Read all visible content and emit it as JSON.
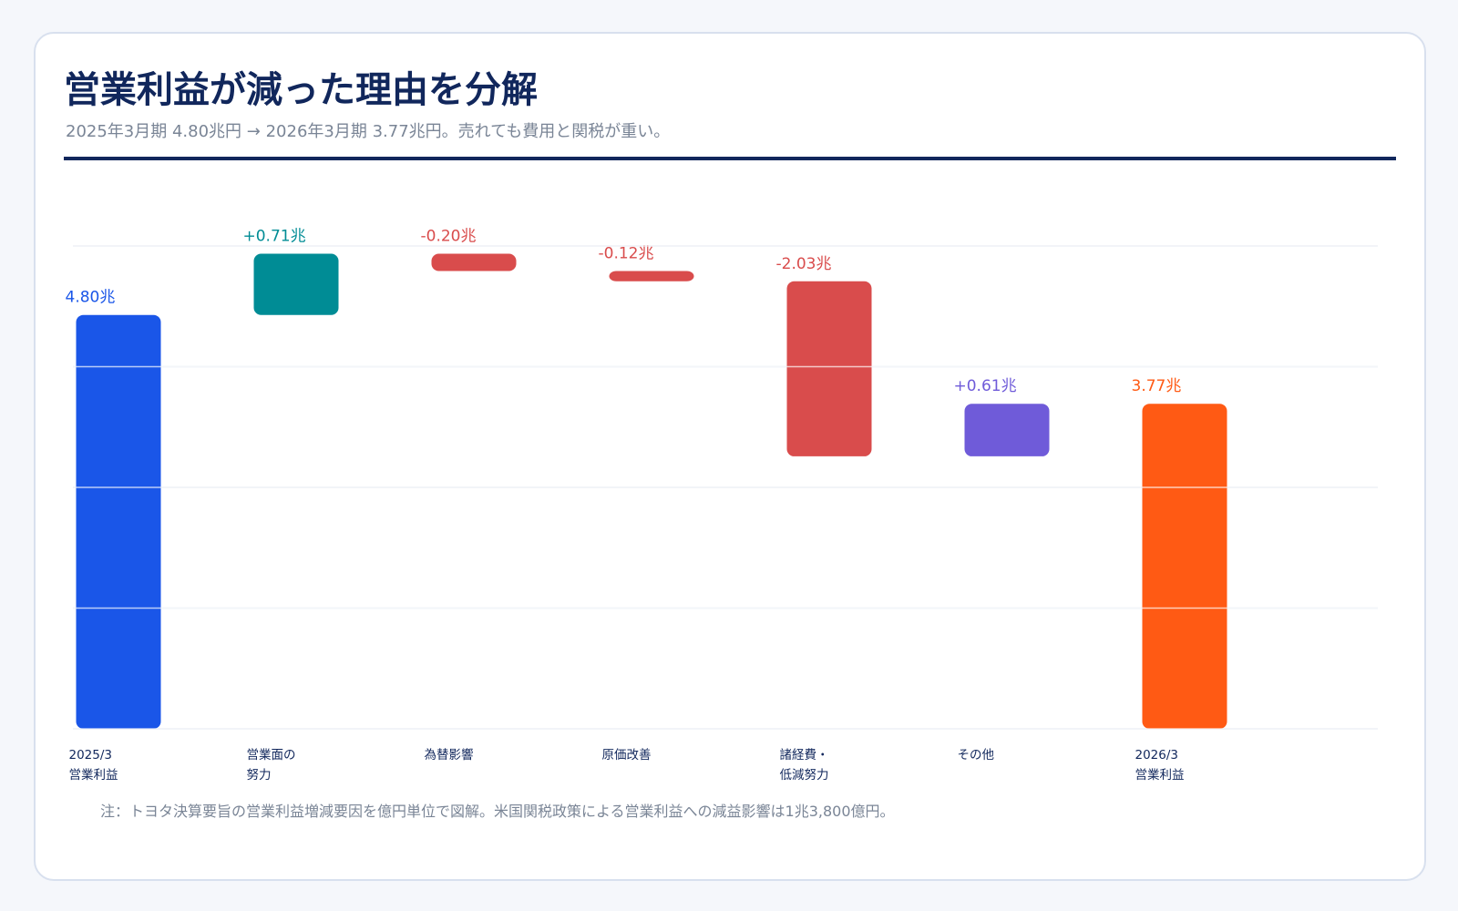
{
  "header": {
    "title": "営業利益が減った理由を分解",
    "subtitle": "2025年3月期 4.80兆円 → 2026年3月期 3.77兆円。売れても費用と関税が重い。"
  },
  "chart_data": {
    "type": "waterfall",
    "categories": [
      "2025/3\n営業利益",
      "営業面の\n努力",
      "為替影響",
      "原価改善",
      "諸経費・\n低減努力",
      "その他",
      "2026/3\n営業利益"
    ],
    "measures": [
      "absolute",
      "relative",
      "relative",
      "relative",
      "relative",
      "relative",
      "total"
    ],
    "values": [
      4.8,
      0.71,
      -0.2,
      -0.12,
      -2.03,
      0.61,
      3.77
    ],
    "value_labels": [
      "4.80兆",
      "+0.71兆",
      "-0.20兆",
      "-0.12兆",
      "-2.03兆",
      "+0.61兆",
      "3.77兆"
    ],
    "colors": [
      "#1a56e8",
      "#008c95",
      "#d94c4c",
      "#d94c4c",
      "#d94c4c",
      "#6f5bd9",
      "#ff5a14"
    ],
    "ylim": [
      0,
      5.6
    ],
    "yticks": [
      0,
      1.4,
      2.8,
      4.2,
      5.6
    ],
    "grid": true
  },
  "footnote": "注：トヨタ決算要旨の営業利益増減要因を億円単位で図解。米国関税政策による営業利益への減益影響は1兆3,800億円。"
}
